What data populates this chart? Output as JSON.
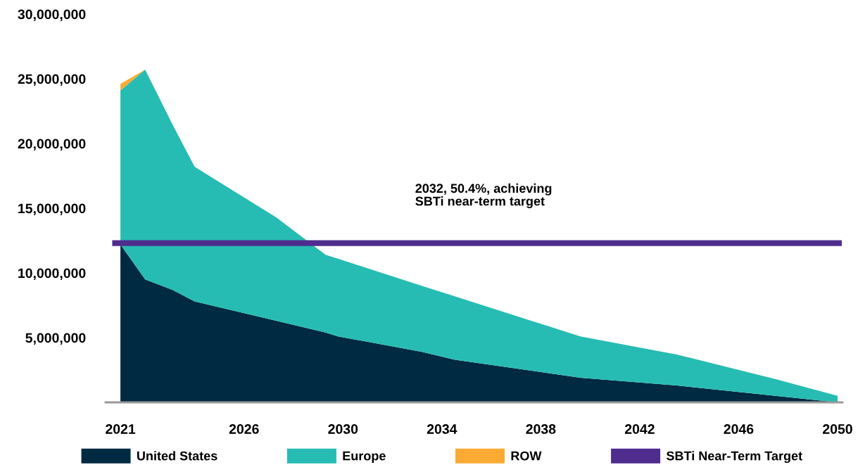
{
  "chart_data": {
    "type": "area",
    "stacked": true,
    "x": [
      2021,
      2022,
      2023.1,
      2024,
      2027.3,
      2029.3,
      2029.8,
      2033.2,
      2034.5,
      2039.6,
      2043.5,
      2047.5,
      2050
    ],
    "series": [
      {
        "name": "United States",
        "color": "#002a42",
        "values": [
          12200000,
          9500000,
          8700000,
          7800000,
          6300000,
          5400000,
          5100000,
          3900000,
          3300000,
          1900000,
          1300000,
          500000,
          0
        ]
      },
      {
        "name": "Europe",
        "color": "#27bcb3",
        "values": [
          11900000,
          16200000,
          12800000,
          10400000,
          8000000,
          6000000,
          6000000,
          5100000,
          4900000,
          3200000,
          2400000,
          1300000,
          500000
        ]
      },
      {
        "name": "ROW",
        "color": "#fbab34",
        "values": [
          500000,
          0,
          0,
          0,
          0,
          0,
          0,
          0,
          0,
          0,
          0,
          0,
          0
        ]
      }
    ],
    "ref_lines": [
      {
        "axis": "y",
        "value": 12300000,
        "label": "SBTi Near-Term Target",
        "color": "#4f2d8f"
      }
    ],
    "annotations": [
      "2032, 50.4%, achieving\nSBTi near-term target"
    ],
    "xlim": [
      2020.4,
      2050.2
    ],
    "xticks": [
      2021,
      2026,
      2030,
      2034,
      2038,
      2042,
      2046,
      2050
    ],
    "ylim": [
      0,
      30000000
    ],
    "yticks": [
      {
        "value": 5000000,
        "label": "5,000,000"
      },
      {
        "value": 10000000,
        "label": "10,000,000"
      },
      {
        "value": 15000000,
        "label": "15,000,000"
      },
      {
        "value": 20000000,
        "label": "20,000,000"
      },
      {
        "value": 25000000,
        "label": "25,000,000"
      },
      {
        "value": 30000000,
        "label": "30,000,000"
      }
    ],
    "grid": false,
    "legend": "bottom"
  }
}
